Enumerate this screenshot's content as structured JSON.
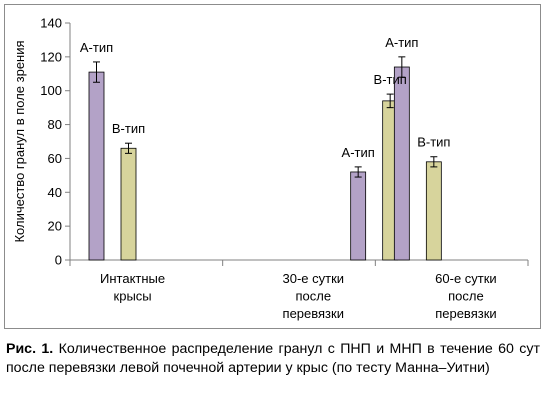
{
  "chart_data": {
    "type": "bar",
    "ylabel": "Количество гранул в поле зрения",
    "xlabel": "",
    "ylim": [
      0,
      140
    ],
    "yticks": [
      0,
      20,
      40,
      60,
      80,
      100,
      120,
      140
    ],
    "categories": [
      [
        "Интактные",
        "крысы"
      ],
      [
        "30-е сутки",
        "после",
        "перевязки"
      ],
      [
        "60-е сутки",
        "после",
        "перевязки"
      ]
    ],
    "series": [
      {
        "name": "А-тип",
        "color": "#b3a2c7",
        "values": [
          111,
          52,
          114
        ],
        "errors": [
          6,
          3,
          6
        ],
        "data_labels": [
          "А-тип",
          "А-тип",
          "А-тип"
        ]
      },
      {
        "name": "В-тип",
        "color": "#d7d49c",
        "values": [
          66,
          94,
          58
        ],
        "errors": [
          3,
          4,
          3
        ],
        "data_labels": [
          "В-тип",
          "В-тип",
          "В-тип"
        ]
      }
    ],
    "grid": false,
    "legend": "none"
  },
  "caption": {
    "label": "Рис. 1.",
    "text": "Количественное распределение гранул с ПНП и МНП в течение 60 сут после перевязки левой почечной артерии у крыс (по тесту Манна–Уитни)"
  }
}
